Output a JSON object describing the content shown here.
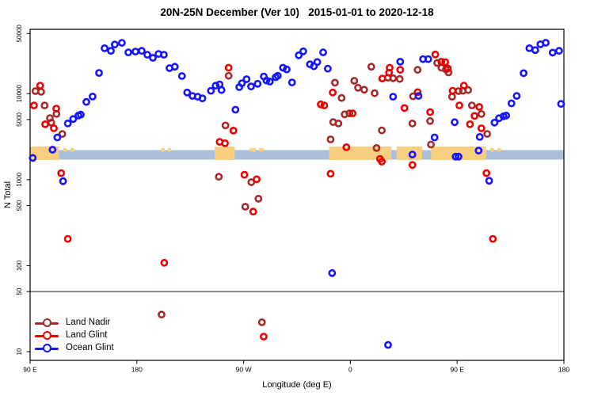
{
  "title": "20N-25N December (Ver 10)   2015-01-01 to 2020-12-18",
  "chart_data": {
    "type": "scatter",
    "title": "20N-25N December (Ver 10)   2015-01-01 to 2020-12-18",
    "xlabel": "Longitude (deg E)",
    "ylabel": "N Total",
    "y_scale": "log10",
    "ylim": [
      10,
      50000
    ],
    "x_axis_note": "Longitude axis spans 450 deg starting at 90E going eastward; the 90E-180 sector is plotted twice (wraparound repeat at right side). Internally lon is stored unwrapped 90..540.",
    "x_span_deg": [
      90,
      540
    ],
    "x_ticks": [
      {
        "lon": 90,
        "label": "90 E"
      },
      {
        "lon": 180,
        "label": "180"
      },
      {
        "lon": 270,
        "label": "90 W"
      },
      {
        "lon": 360,
        "label": "0"
      },
      {
        "lon": 450,
        "label": "90 E"
      },
      {
        "lon": 540,
        "label": "180"
      }
    ],
    "y_ticks": [
      10,
      50,
      100,
      500,
      1000,
      5000,
      10000,
      50000
    ],
    "grid": "off",
    "reference_line": {
      "value": 50,
      "color": "#808080"
    },
    "map_band": {
      "description": "thin world-map strip of the 20N-25N latitude band drawn across the plot near N=2000",
      "ocean_color": "#A9BFDA",
      "land_color": "#F7CF7E",
      "center_value": 2000,
      "land_segments_lon": [
        [
          90,
          114.3
        ],
        [
          245.5,
          262.5
        ],
        [
          342,
          394.5
        ],
        [
          399,
          420.5
        ],
        [
          428,
          474.3
        ]
      ],
      "island_segments_lon": [
        [
          118,
          121
        ],
        [
          124,
          127
        ],
        [
          200.5,
          203.5
        ],
        [
          206,
          209
        ],
        [
          275,
          280.5
        ],
        [
          283,
          287
        ],
        [
          478,
          481
        ],
        [
          484,
          487
        ]
      ]
    },
    "legend": {
      "position": "bottom-left"
    },
    "series": [
      {
        "name": "Land Nadir",
        "color": "#A52A2A",
        "points": [
          [
            94.5,
            10700
          ],
          [
            99.3,
            10500
          ],
          [
            102.2,
            7300
          ],
          [
            106.7,
            5200
          ],
          [
            107.8,
            4600
          ],
          [
            112.2,
            5800
          ],
          [
            117.2,
            3400
          ],
          [
            200.8,
            27
          ],
          [
            249.1,
            1080
          ],
          [
            254.7,
            4270
          ],
          [
            257.4,
            16100
          ],
          [
            271.4,
            485
          ],
          [
            276.5,
            935
          ],
          [
            282.5,
            600
          ],
          [
            285.4,
            22
          ],
          [
            343.3,
            2940
          ],
          [
            345.5,
            4660
          ],
          [
            347,
            13400
          ],
          [
            349.9,
            4500
          ],
          [
            352.6,
            8900
          ],
          [
            355.2,
            5740
          ],
          [
            359.2,
            5900
          ],
          [
            363.3,
            14100
          ],
          [
            366.4,
            11700
          ],
          [
            371.6,
            11100
          ],
          [
            377.6,
            20500
          ],
          [
            380.4,
            10100
          ],
          [
            382,
            2330
          ],
          [
            386.5,
            3730
          ],
          [
            391.6,
            15300
          ],
          [
            396,
            15100
          ],
          [
            401.6,
            14800
          ],
          [
            412.3,
            4500
          ],
          [
            412.8,
            9300
          ],
          [
            416.7,
            18900
          ],
          [
            427.2,
            4800
          ],
          [
            427.9,
            2560
          ],
          [
            433.2,
            22700
          ],
          [
            436.7,
            20000
          ],
          [
            440.5,
            19100
          ],
          [
            442.7,
            17600
          ],
          [
            445.7,
            9200
          ],
          [
            451.2,
            10700
          ],
          [
            454.8,
            10800
          ],
          [
            459.3,
            11000
          ],
          [
            462.4,
            7300
          ],
          [
            470.4,
            5800
          ],
          [
            475.3,
            3400
          ]
        ]
      },
      {
        "name": "Land Glint",
        "color": "#EE0000",
        "points": [
          [
            93.3,
            7300
          ],
          [
            98.5,
            12400
          ],
          [
            102.7,
            4400
          ],
          [
            110,
            3950
          ],
          [
            112,
            6700
          ],
          [
            116.2,
            1190
          ],
          [
            121.8,
            205
          ],
          [
            203.1,
            108
          ],
          [
            249.8,
            2750
          ],
          [
            254.3,
            2650
          ],
          [
            257.4,
            20000
          ],
          [
            261.4,
            3720
          ],
          [
            270.7,
            1140
          ],
          [
            278.1,
            425
          ],
          [
            281,
            1010
          ],
          [
            286.9,
            15
          ],
          [
            335,
            7500
          ],
          [
            338,
            7300
          ],
          [
            343.3,
            1170
          ],
          [
            345.1,
            10300
          ],
          [
            356.6,
            2380
          ],
          [
            361.9,
            5900
          ],
          [
            385,
            1740
          ],
          [
            386.5,
            1620
          ],
          [
            386.9,
            15000
          ],
          [
            392.6,
            17500
          ],
          [
            393.1,
            20000
          ],
          [
            402,
            18900
          ],
          [
            405.6,
            6800
          ],
          [
            412.3,
            1480
          ],
          [
            416.7,
            10400
          ],
          [
            427.2,
            6100
          ],
          [
            431.6,
            28500
          ],
          [
            436.7,
            23500
          ],
          [
            439.9,
            23200
          ],
          [
            442.2,
            19600
          ],
          [
            446.1,
            10800
          ],
          [
            451.9,
            7300
          ],
          [
            455.7,
            12400
          ],
          [
            460.8,
            4400
          ],
          [
            464.6,
            5500
          ],
          [
            468.6,
            7000
          ],
          [
            470.4,
            3950
          ],
          [
            474.7,
            1190
          ],
          [
            480.1,
            205
          ]
        ]
      },
      {
        "name": "Ocean Glint",
        "color": "#1414FF",
        "points": [
          [
            92.2,
            1790
          ],
          [
            108.9,
            2230
          ],
          [
            113,
            3100
          ],
          [
            117.8,
            960
          ],
          [
            121.8,
            4500
          ],
          [
            126.3,
            5060
          ],
          [
            130.7,
            5560
          ],
          [
            132.7,
            5700
          ],
          [
            137.4,
            8000
          ],
          [
            142.7,
            9250
          ],
          [
            148.1,
            17400
          ],
          [
            152.8,
            33700
          ],
          [
            158.1,
            31400
          ],
          [
            161.4,
            37200
          ],
          [
            167.4,
            38900
          ],
          [
            172.8,
            30200
          ],
          [
            178.8,
            30800
          ],
          [
            184.1,
            31400
          ],
          [
            188.8,
            28300
          ],
          [
            193.5,
            26100
          ],
          [
            198.2,
            28900
          ],
          [
            202.8,
            28300
          ],
          [
            207.5,
            19800
          ],
          [
            212,
            20500
          ],
          [
            218,
            16000
          ],
          [
            222.4,
            10300
          ],
          [
            226.9,
            9400
          ],
          [
            231.3,
            9200
          ],
          [
            235.3,
            8800
          ],
          [
            242.4,
            10800
          ],
          [
            246.4,
            12400
          ],
          [
            249.8,
            12800
          ],
          [
            251.4,
            11000
          ],
          [
            263.1,
            6500
          ],
          [
            266.3,
            11900
          ],
          [
            268.5,
            13200
          ],
          [
            272.5,
            14700
          ],
          [
            276.3,
            12100
          ],
          [
            281.8,
            13000
          ],
          [
            287,
            15800
          ],
          [
            289.2,
            14200
          ],
          [
            292.1,
            13800
          ],
          [
            297,
            15500
          ],
          [
            298.8,
            16100
          ],
          [
            303.2,
            20000
          ],
          [
            306.3,
            19100
          ],
          [
            310.8,
            13500
          ],
          [
            316.5,
            27900
          ],
          [
            320.3,
            31000
          ],
          [
            325.9,
            21900
          ],
          [
            329.2,
            20800
          ],
          [
            332.1,
            23300
          ],
          [
            337,
            30200
          ],
          [
            341,
            19500
          ],
          [
            344.6,
            82
          ],
          [
            391.8,
            12
          ],
          [
            396,
            9200
          ],
          [
            402,
            23500
          ],
          [
            412.3,
            1960
          ],
          [
            417.4,
            9400
          ],
          [
            421.2,
            25200
          ],
          [
            425.6,
            25200
          ],
          [
            431,
            3100
          ],
          [
            447.9,
            4650
          ],
          [
            448.7,
            1850
          ],
          [
            451.2,
            1850
          ],
          [
            468.1,
            2180
          ],
          [
            469,
            3140
          ],
          [
            477,
            970
          ],
          [
            481.5,
            4600
          ],
          [
            485.3,
            5170
          ],
          [
            489.1,
            5460
          ],
          [
            491.3,
            5560
          ],
          [
            495.8,
            7700
          ],
          [
            500.2,
            9400
          ],
          [
            506,
            17300
          ],
          [
            510.9,
            33700
          ],
          [
            515.8,
            32000
          ],
          [
            520.2,
            37500
          ],
          [
            524.7,
            39000
          ],
          [
            530.5,
            30000
          ],
          [
            535.9,
            31400
          ],
          [
            537.6,
            7600
          ]
        ]
      }
    ]
  }
}
